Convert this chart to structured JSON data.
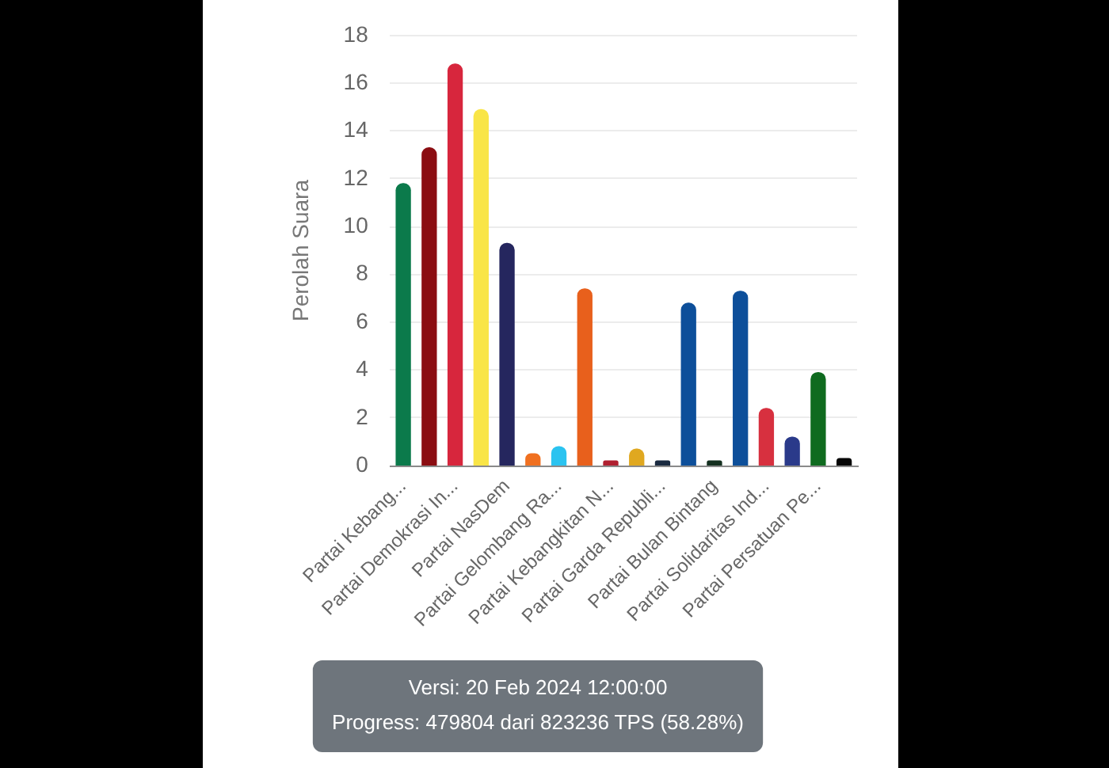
{
  "chart_data": {
    "type": "bar",
    "categories": [
      "Partai Kebang...",
      null,
      "Partai Demokrasi In...",
      null,
      "Partai NasDem",
      null,
      "Partai Gelombang Ra...",
      null,
      "Partai Kebangkitan N...",
      null,
      "Partai Garda Republi...",
      null,
      "Partai Bulan Bintang",
      null,
      "Partai Solidaritas Ind...",
      null,
      "Partai Persatuan Pe...",
      null
    ],
    "values": [
      11.8,
      13.3,
      16.8,
      14.9,
      9.3,
      0.5,
      0.8,
      7.4,
      0.2,
      0.7,
      0.2,
      6.8,
      0.2,
      7.3,
      2.4,
      1.2,
      3.9,
      0.3
    ],
    "colors": [
      "#0b7a4b",
      "#8b0d12",
      "#d7263d",
      "#f9e547",
      "#25265e",
      "#f07020",
      "#2bc3f0",
      "#e8601c",
      "#b02030",
      "#e0a820",
      "#1a2a40",
      "#0d4f9a",
      "#143020",
      "#0d4f9a",
      "#d7303f",
      "#2a3a8a",
      "#0f6b1f",
      "#050505"
    ],
    "ylabel": "Perolah Suara",
    "ylim": [
      0,
      18
    ],
    "yticks": [
      0,
      2,
      4,
      6,
      8,
      10,
      12,
      14,
      16,
      18
    ],
    "grid": "y",
    "annotations": [
      "Versi: 20 Feb 2024 12:00:00",
      "Progress: 479804 dari 823236 TPS (58.28%)"
    ]
  }
}
